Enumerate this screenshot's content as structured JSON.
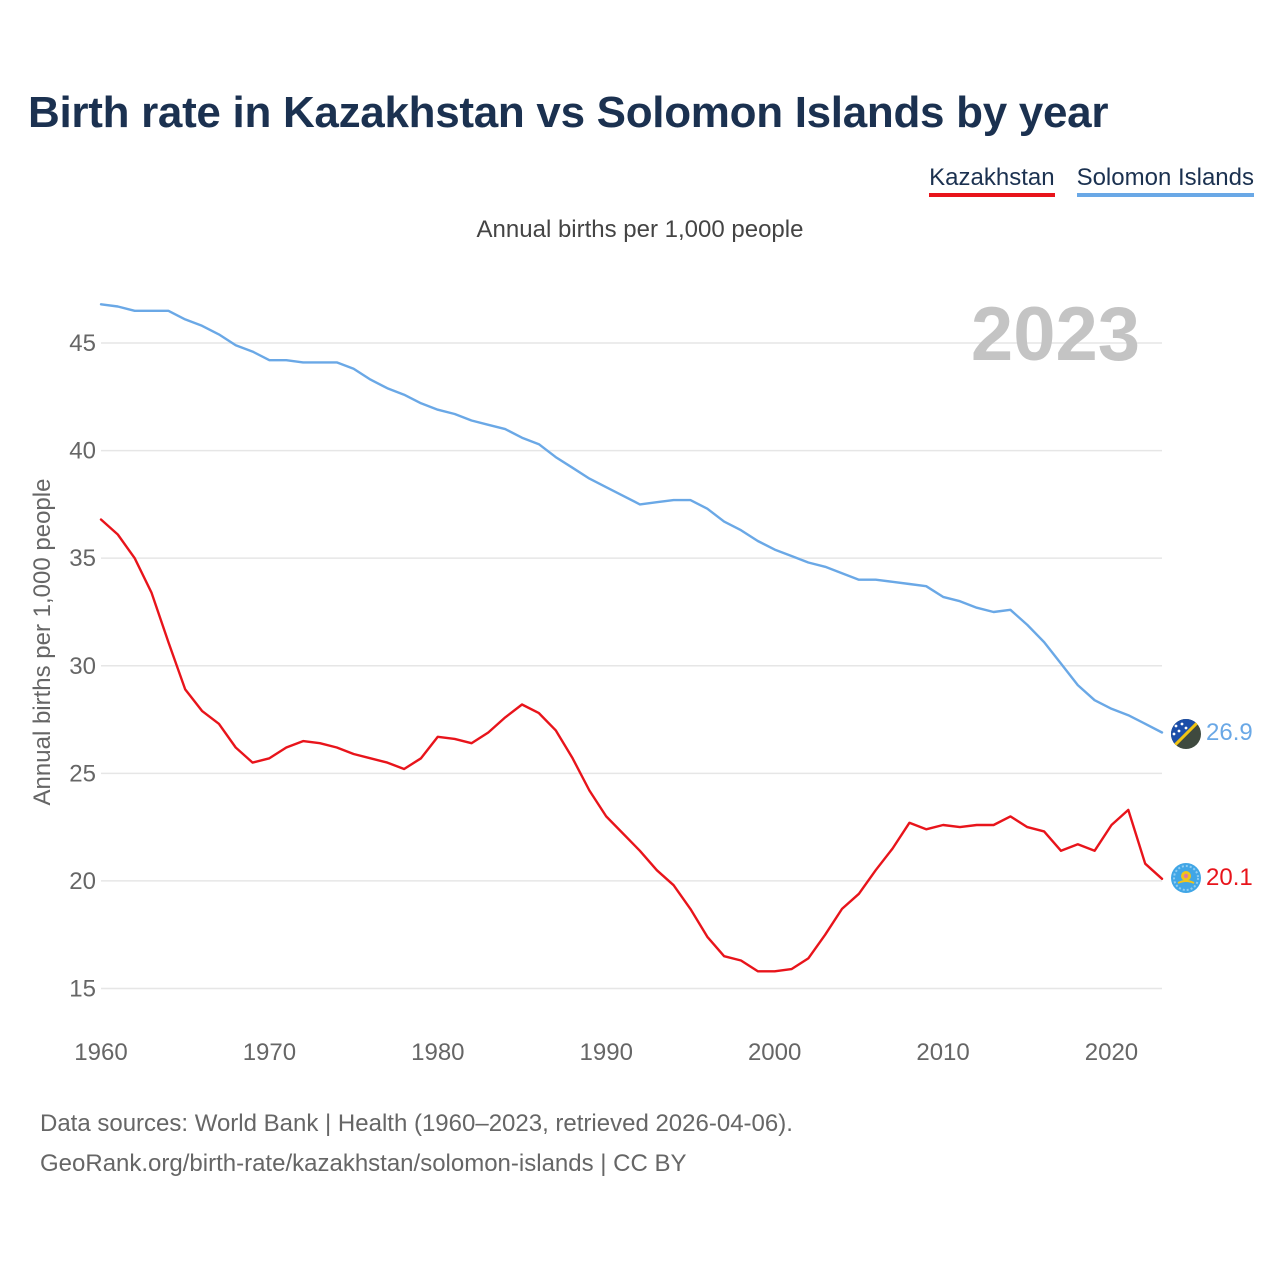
{
  "chart_data": {
    "type": "line",
    "title": "Birth rate in Kazakhstan vs Solomon Islands by year",
    "subtitle": "Annual births per 1,000 people",
    "ylabel": "Annual births per 1,000 people",
    "xlabel": "",
    "year_label": "2023",
    "xlim": [
      1960,
      2023
    ],
    "ylim": [
      14,
      47
    ],
    "x_ticks": [
      1960,
      1970,
      1980,
      1990,
      2000,
      2010,
      2020
    ],
    "y_ticks": [
      15,
      20,
      25,
      30,
      35,
      40,
      45
    ],
    "grid": true,
    "legend_position": "top-right",
    "x": [
      1960,
      1961,
      1962,
      1963,
      1964,
      1965,
      1966,
      1967,
      1968,
      1969,
      1970,
      1971,
      1972,
      1973,
      1974,
      1975,
      1976,
      1977,
      1978,
      1979,
      1980,
      1981,
      1982,
      1983,
      1984,
      1985,
      1986,
      1987,
      1988,
      1989,
      1990,
      1991,
      1992,
      1993,
      1994,
      1995,
      1996,
      1997,
      1998,
      1999,
      2000,
      2001,
      2002,
      2003,
      2004,
      2005,
      2006,
      2007,
      2008,
      2009,
      2010,
      2011,
      2012,
      2013,
      2014,
      2015,
      2016,
      2017,
      2018,
      2019,
      2020,
      2021,
      2022,
      2023
    ],
    "series": [
      {
        "name": "Kazakhstan",
        "color": "#e8141b",
        "end_label": "20.1",
        "flag_icon": "kazakhstan-flag-icon",
        "values": [
          36.8,
          36.1,
          35.0,
          33.4,
          31.1,
          28.9,
          27.9,
          27.3,
          26.2,
          25.5,
          25.7,
          26.2,
          26.5,
          26.4,
          26.2,
          25.9,
          25.7,
          25.5,
          25.2,
          25.7,
          26.7,
          26.6,
          26.4,
          26.9,
          27.6,
          28.2,
          27.8,
          27.0,
          25.7,
          24.2,
          23.0,
          22.2,
          21.4,
          20.5,
          19.8,
          18.7,
          17.4,
          16.5,
          16.3,
          15.8,
          15.8,
          15.9,
          16.4,
          17.5,
          18.7,
          19.4,
          20.5,
          21.5,
          22.7,
          22.4,
          22.6,
          22.5,
          22.6,
          22.6,
          23.0,
          22.5,
          22.3,
          21.4,
          21.7,
          21.4,
          22.6,
          23.3,
          20.8,
          20.1
        ]
      },
      {
        "name": "Solomon Islands",
        "color": "#6aa8e6",
        "end_label": "26.9",
        "flag_icon": "solomon-islands-flag-icon",
        "values": [
          46.8,
          46.7,
          46.5,
          46.5,
          46.5,
          46.1,
          45.8,
          45.4,
          44.9,
          44.6,
          44.2,
          44.2,
          44.1,
          44.1,
          44.1,
          43.8,
          43.3,
          42.9,
          42.6,
          42.2,
          41.9,
          41.7,
          41.4,
          41.2,
          41.0,
          40.6,
          40.3,
          39.7,
          39.2,
          38.7,
          38.3,
          37.9,
          37.5,
          37.6,
          37.7,
          37.7,
          37.3,
          36.7,
          36.3,
          35.8,
          35.4,
          35.1,
          34.8,
          34.6,
          34.3,
          34.0,
          34.0,
          33.9,
          33.8,
          33.7,
          33.2,
          33.0,
          32.7,
          32.5,
          32.6,
          31.9,
          31.1,
          30.1,
          29.1,
          28.4,
          28.0,
          27.7,
          27.3,
          26.9
        ]
      }
    ]
  },
  "footer": {
    "line1": "Data sources: World Bank | Health (1960–2023, retrieved 2026-04-06).",
    "line2": "GeoRank.org/birth-rate/kazakhstan/solomon-islands | CC BY"
  }
}
